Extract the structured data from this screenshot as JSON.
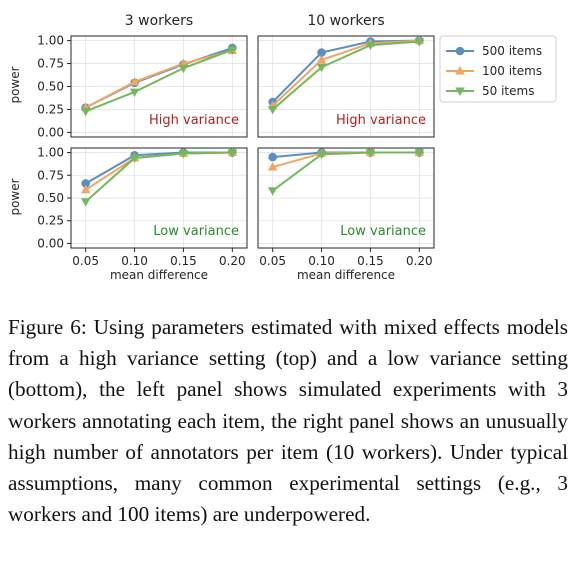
{
  "columns": [
    "3 workers",
    "10 workers"
  ],
  "xlabel": "mean difference",
  "ylabel": "power",
  "legend": [
    "500 items",
    "100 items",
    "50 items"
  ],
  "colors": {
    "s500": "#5b8fc4",
    "s100": "#f2a55c",
    "s50": "#73b85c",
    "high": "#b22222",
    "low": "#2a8a2a"
  },
  "caption": "Figure 6:  Using parameters estimated with mixed effects models from a high variance setting (top) and a low variance setting (bottom), the left panel shows simulated experiments with 3 workers annotating each item, the right panel shows an unusually high number of annotators per item (10 workers). Under typical assumptions, many common experimental settings (e.g., 3 workers and 100 items) are underpowered.",
  "chart_data": [
    {
      "type": "line",
      "row": "High variance",
      "title": "3 workers",
      "annotation": "High variance",
      "x": [
        0.05,
        0.1,
        0.15,
        0.2
      ],
      "xlim": [
        0.035,
        0.215
      ],
      "ylim": [
        -0.05,
        1.05
      ],
      "xticks": [
        "0.05",
        "0.10",
        "0.15",
        "0.20"
      ],
      "yticks": [
        "0.00",
        "0.25",
        "0.50",
        "0.75",
        "1.00"
      ],
      "series": [
        {
          "name": "500 items",
          "values": [
            0.27,
            0.54,
            0.74,
            0.92
          ]
        },
        {
          "name": "100 items",
          "values": [
            0.27,
            0.55,
            0.75,
            0.89
          ]
        },
        {
          "name": "50 items",
          "values": [
            0.23,
            0.44,
            0.7,
            0.9
          ]
        }
      ]
    },
    {
      "type": "line",
      "row": "High variance",
      "title": "10 workers",
      "annotation": "High variance",
      "x": [
        0.05,
        0.1,
        0.15,
        0.2
      ],
      "xlim": [
        0.035,
        0.215
      ],
      "ylim": [
        -0.05,
        1.05
      ],
      "xticks": [
        "0.05",
        "0.10",
        "0.15",
        "0.20"
      ],
      "yticks": [
        "0.00",
        "0.25",
        "0.50",
        "0.75",
        "1.00"
      ],
      "series": [
        {
          "name": "500 items",
          "values": [
            0.33,
            0.87,
            0.99,
            1.0
          ]
        },
        {
          "name": "100 items",
          "values": [
            0.29,
            0.79,
            0.97,
            1.0
          ]
        },
        {
          "name": "50 items",
          "values": [
            0.25,
            0.71,
            0.95,
            0.99
          ]
        }
      ]
    },
    {
      "type": "line",
      "row": "Low variance",
      "title": "3 workers",
      "annotation": "Low variance",
      "x": [
        0.05,
        0.1,
        0.15,
        0.2
      ],
      "xlim": [
        0.035,
        0.215
      ],
      "ylim": [
        -0.05,
        1.05
      ],
      "xticks": [
        "0.05",
        "0.10",
        "0.15",
        "0.20"
      ],
      "yticks": [
        "0.00",
        "0.25",
        "0.50",
        "0.75",
        "1.00"
      ],
      "series": [
        {
          "name": "500 items",
          "values": [
            0.66,
            0.97,
            1.0,
            1.0
          ]
        },
        {
          "name": "100 items",
          "values": [
            0.59,
            0.94,
            0.99,
            1.0
          ]
        },
        {
          "name": "50 items",
          "values": [
            0.46,
            0.94,
            0.99,
            1.0
          ]
        }
      ]
    },
    {
      "type": "line",
      "row": "Low variance",
      "title": "10 workers",
      "annotation": "Low variance",
      "x": [
        0.05,
        0.1,
        0.15,
        0.2
      ],
      "xlim": [
        0.035,
        0.215
      ],
      "ylim": [
        -0.05,
        1.05
      ],
      "xticks": [
        "0.05",
        "0.10",
        "0.15",
        "0.20"
      ],
      "yticks": [
        "0.00",
        "0.25",
        "0.50",
        "0.75",
        "1.00"
      ],
      "series": [
        {
          "name": "500 items",
          "values": [
            0.95,
            1.0,
            1.0,
            1.0
          ]
        },
        {
          "name": "100 items",
          "values": [
            0.84,
            0.99,
            1.0,
            1.0
          ]
        },
        {
          "name": "50 items",
          "values": [
            0.58,
            0.98,
            1.0,
            1.0
          ]
        }
      ]
    }
  ]
}
